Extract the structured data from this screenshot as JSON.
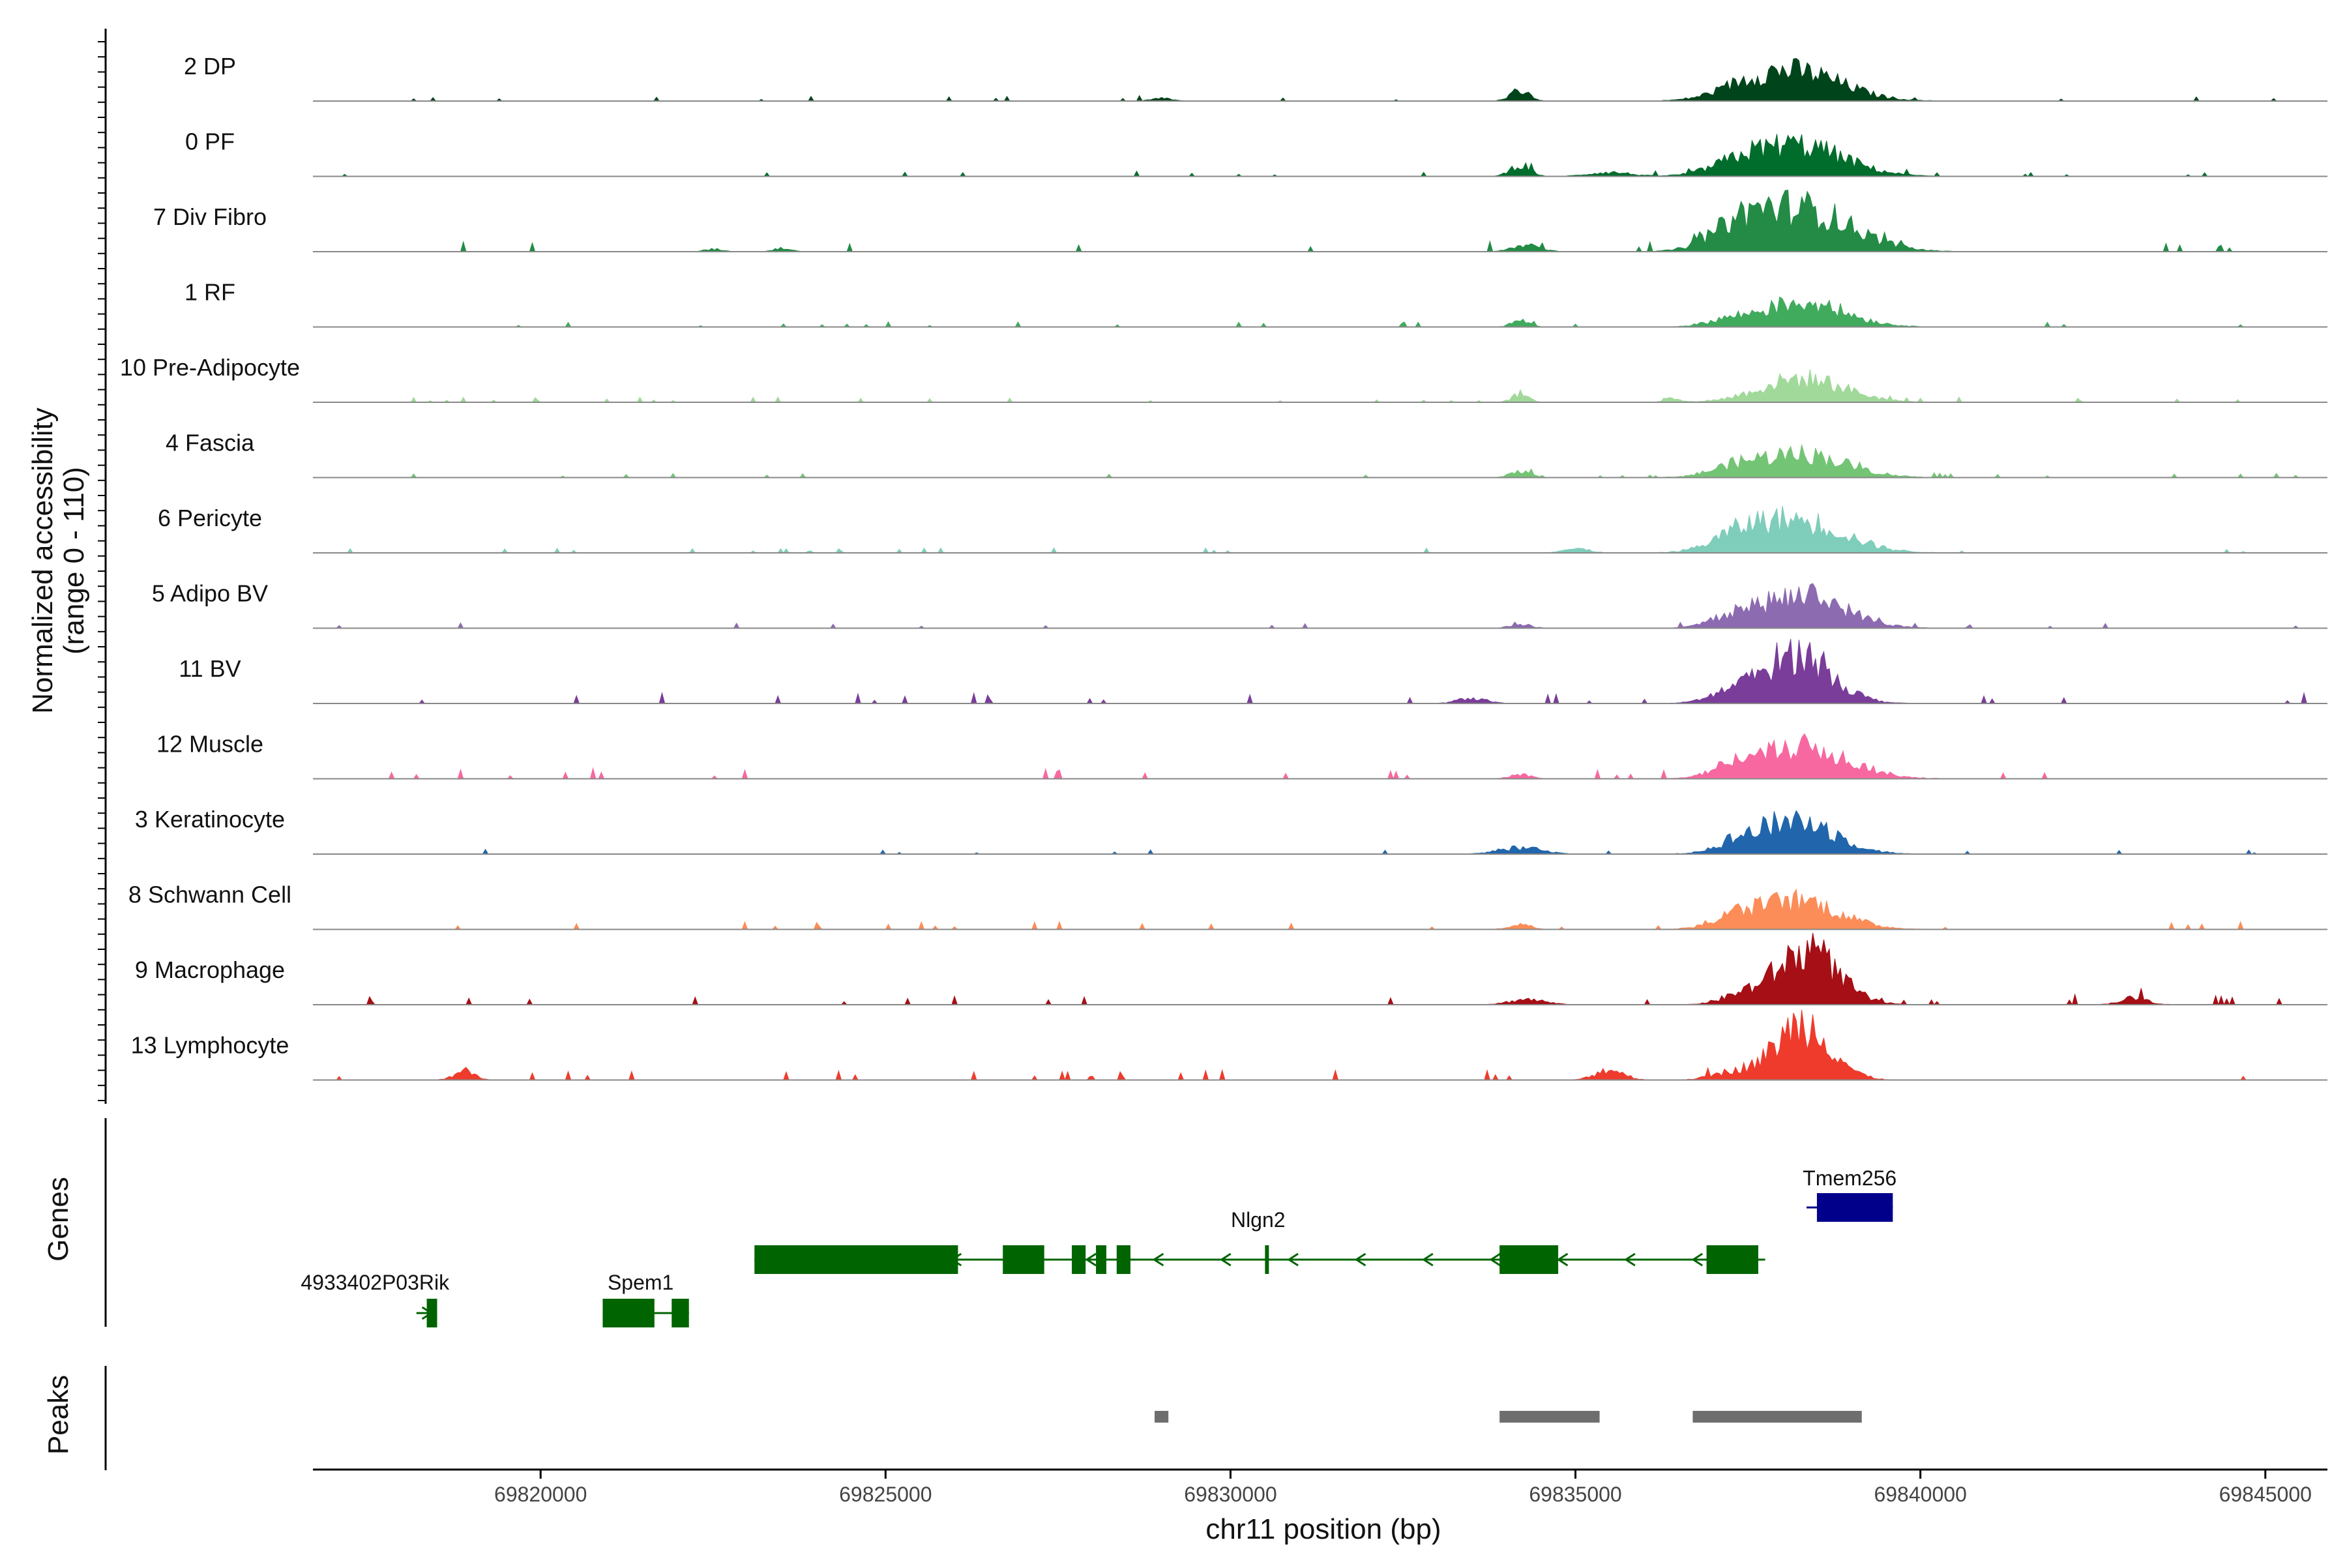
{
  "chart_data": {
    "type": "area",
    "title": "",
    "ylabel_line1": "Normalized accessibility",
    "ylabel_line2": "(range 0 - 110)",
    "ylim": [
      0,
      110
    ],
    "xlabel": "chr11 position (bp)",
    "xlim": [
      69816700,
      69845900
    ],
    "xticks": [
      69820000,
      69825000,
      69830000,
      69835000,
      69840000,
      69845000
    ],
    "xtick_labels": [
      "69820000",
      "69825000",
      "69830000",
      "69835000",
      "69840000",
      "69845000"
    ],
    "genes_label": "Genes",
    "peaks_label": "Peaks",
    "tracks": [
      {
        "name": "2 DP",
        "color": "#00441b",
        "peaks": [
          [
            69834200,
            16,
            140
          ],
          [
            69838250,
            42,
            650
          ],
          [
            69837500,
            14,
            450
          ],
          [
            69829000,
            4,
            150
          ]
        ],
        "noise": 2
      },
      {
        "name": "0 PF",
        "color": "#006d2c",
        "peaks": [
          [
            69834200,
            18,
            140
          ],
          [
            69838250,
            46,
            650
          ],
          [
            69837400,
            14,
            420
          ],
          [
            69835500,
            6,
            300
          ]
        ],
        "noise": 2
      },
      {
        "name": "7 Div Fibro",
        "color": "#238b45",
        "peaks": [
          [
            69838300,
            64,
            700
          ],
          [
            69837400,
            30,
            400
          ],
          [
            69834300,
            10,
            200
          ],
          [
            69822500,
            4,
            120
          ],
          [
            69823500,
            5,
            120
          ]
        ],
        "noise": 4
      },
      {
        "name": "1 RF",
        "color": "#41ab5d",
        "peaks": [
          [
            69834200,
            10,
            120
          ],
          [
            69838300,
            38,
            600
          ],
          [
            69837200,
            8,
            300
          ]
        ],
        "noise": 2
      },
      {
        "name": "10 Pre-Adipocyte",
        "color": "#a1d99b",
        "peaks": [
          [
            69834200,
            12,
            120
          ],
          [
            69838300,
            36,
            600
          ],
          [
            69836400,
            6,
            100
          ]
        ],
        "noise": 2
      },
      {
        "name": "4 Fascia",
        "color": "#74c476",
        "peaks": [
          [
            69834200,
            10,
            140
          ],
          [
            69838250,
            36,
            650
          ],
          [
            69837300,
            10,
            350
          ]
        ],
        "noise": 2
      },
      {
        "name": "6 Pericyte",
        "color": "#7fcdbb",
        "peaks": [
          [
            69838250,
            48,
            650
          ],
          [
            69837400,
            20,
            400
          ],
          [
            69835000,
            6,
            200
          ]
        ],
        "noise": 2
      },
      {
        "name": "5 Adipo BV",
        "color": "#8c6bb1",
        "peaks": [
          [
            69838300,
            50,
            600
          ],
          [
            69837300,
            16,
            300
          ],
          [
            69834200,
            6,
            150
          ]
        ],
        "noise": 2
      },
      {
        "name": "11 BV",
        "color": "#7a3d9a",
        "peaks": [
          [
            69838200,
            76,
            500
          ],
          [
            69837200,
            12,
            300
          ],
          [
            69833500,
            8,
            200
          ]
        ],
        "noise": 4
      },
      {
        "name": "12 Muscle",
        "color": "#f768a1",
        "peaks": [
          [
            69838300,
            48,
            650
          ],
          [
            69837300,
            14,
            300
          ],
          [
            69834200,
            6,
            150
          ]
        ],
        "noise": 4
      },
      {
        "name": "3 Keratinocyte",
        "color": "#2166ac",
        "peaks": [
          [
            69838200,
            52,
            550
          ],
          [
            69837300,
            12,
            300
          ],
          [
            69834200,
            10,
            300
          ]
        ],
        "noise": 2
      },
      {
        "name": "8 Schwann Cell",
        "color": "#fc8d59",
        "peaks": [
          [
            69838200,
            44,
            600
          ],
          [
            69837300,
            12,
            300
          ],
          [
            69834200,
            8,
            150
          ]
        ],
        "noise": 3
      },
      {
        "name": "9 Macrophage",
        "color": "#a50f15",
        "peaks": [
          [
            69838350,
            80,
            450
          ],
          [
            69837400,
            12,
            300
          ],
          [
            69843100,
            10,
            200
          ],
          [
            69834300,
            8,
            250
          ]
        ],
        "noise": 4
      },
      {
        "name": "13 Lymphocyte",
        "color": "#ef3b2c",
        "peaks": [
          [
            69838300,
            86,
            400
          ],
          [
            69835500,
            16,
            200
          ],
          [
            69818900,
            12,
            150
          ],
          [
            69837300,
            12,
            300
          ]
        ],
        "noise": 4
      }
    ],
    "genes": [
      {
        "name": "4933402P03Rik",
        "strand": "+",
        "color": "#006400",
        "start": 69818200,
        "end": 69818500,
        "exons": [
          [
            69818350,
            69818500
          ]
        ],
        "row": 2
      },
      {
        "name": "Spem1",
        "strand": "-",
        "color": "#006400",
        "start": 69820900,
        "end": 69822150,
        "exons": [
          [
            69820900,
            69821650
          ],
          [
            69821900,
            69822150
          ]
        ],
        "row": 2
      },
      {
        "name": "Nlgn2",
        "strand": "-",
        "color": "#006400",
        "start": 69823100,
        "end": 69837750,
        "exons": [
          [
            69823100,
            69826050
          ],
          [
            69826700,
            69827300
          ],
          [
            69827700,
            69827900
          ],
          [
            69828050,
            69828200
          ],
          [
            69828350,
            69828550
          ],
          [
            69830500,
            69830550
          ],
          [
            69833900,
            69834750
          ],
          [
            69836900,
            69837650
          ]
        ],
        "row": 1
      },
      {
        "name": "Tmem256",
        "strand": "+",
        "color": "#00008b",
        "start": 69838350,
        "end": 69839600,
        "exons": [
          [
            69838500,
            69839600
          ]
        ],
        "row": 0
      }
    ],
    "peaks": [
      [
        69828900,
        69829100
      ],
      [
        69833900,
        69835350
      ],
      [
        69836700,
        69839150
      ]
    ]
  }
}
